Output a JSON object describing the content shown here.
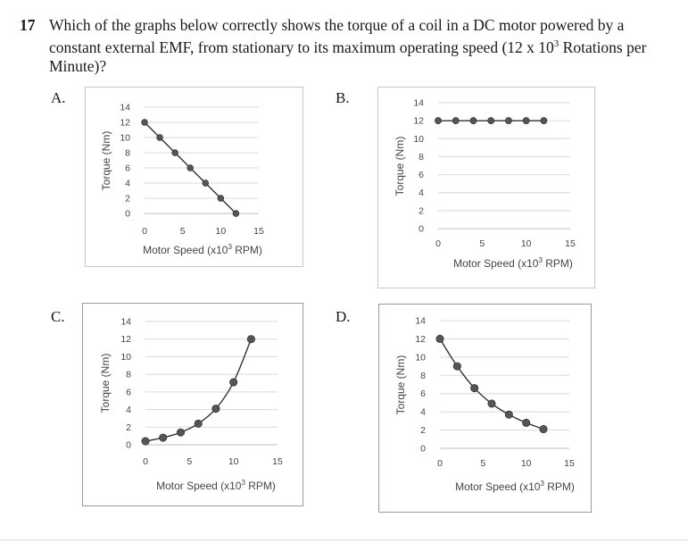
{
  "question": {
    "number": "17",
    "text_pre": "Which of the graphs below correctly shows the torque of a coil in a DC motor powered by a constant external EMF, from stationary to its maximum operating speed (12 x 10",
    "sup": "3",
    "text_post": " Rotations per Minute)?"
  },
  "options": [
    {
      "label": "A."
    },
    {
      "label": "B."
    },
    {
      "label": "C."
    },
    {
      "label": "D."
    }
  ],
  "colors": {
    "marker": "#555555",
    "line": "#333333",
    "grid": "#d9d9d9",
    "axis": "#bfbfbf"
  },
  "chart_data": [
    {
      "id": "A",
      "type": "line",
      "xlabel_base": "Motor Speed (x10",
      "xlabel_sup": "3",
      "xlabel_end": " RPM)",
      "ylabel": "Torque (Nm)",
      "xlim": [
        0,
        15
      ],
      "ylim": [
        0,
        14
      ],
      "xticks": [
        "0",
        "5",
        "10",
        "15"
      ],
      "xtick_values": [
        0,
        5,
        10,
        15
      ],
      "yticks": [
        "0",
        "2",
        "4",
        "6",
        "8",
        "10",
        "12",
        "14"
      ],
      "ytick_values": [
        0,
        2,
        4,
        6,
        8,
        10,
        12,
        14
      ],
      "grid": true,
      "x": [
        0,
        2,
        4,
        6,
        8,
        10,
        12
      ],
      "y": [
        12,
        10,
        8,
        6,
        4,
        2,
        0
      ]
    },
    {
      "id": "B",
      "type": "line",
      "xlabel_base": "Motor Speed (x10",
      "xlabel_sup": "3",
      "xlabel_end": " RPM)",
      "ylabel": "Torque (Nm)",
      "xlim": [
        0,
        15
      ],
      "ylim": [
        0,
        14
      ],
      "xticks": [
        "0",
        "5",
        "10",
        "15"
      ],
      "xtick_values": [
        0,
        5,
        10,
        15
      ],
      "yticks": [
        "0",
        "2",
        "4",
        "6",
        "8",
        "10",
        "12",
        "14"
      ],
      "ytick_values": [
        0,
        2,
        4,
        6,
        8,
        10,
        12,
        14
      ],
      "grid": true,
      "x": [
        0,
        2,
        4,
        6,
        8,
        10,
        12
      ],
      "y": [
        12,
        12,
        12,
        12,
        12,
        12,
        12
      ]
    },
    {
      "id": "C",
      "type": "line",
      "xlabel_base": "Motor Speed (x10",
      "xlabel_sup": "3",
      "xlabel_end": " RPM)",
      "ylabel": "Torque (Nm)",
      "xlim": [
        0,
        15
      ],
      "ylim": [
        0,
        14
      ],
      "xticks": [
        "0",
        "5",
        "10",
        "15"
      ],
      "xtick_values": [
        0,
        5,
        10,
        15
      ],
      "yticks": [
        "0",
        "2",
        "4",
        "6",
        "8",
        "10",
        "12",
        "14"
      ],
      "ytick_values": [
        0,
        2,
        4,
        6,
        8,
        10,
        12,
        14
      ],
      "grid": true,
      "x": [
        0,
        2,
        4,
        6,
        8,
        10,
        12
      ],
      "y": [
        0.4,
        0.8,
        1.4,
        2.4,
        4.1,
        7.1,
        12
      ]
    },
    {
      "id": "D",
      "type": "line",
      "xlabel_base": "Motor Speed (x10",
      "xlabel_sup": "3",
      "xlabel_end": " RPM)",
      "ylabel": "Torque (Nm)",
      "xlim": [
        0,
        15
      ],
      "ylim": [
        0,
        14
      ],
      "xticks": [
        "0",
        "5",
        "10",
        "15"
      ],
      "xtick_values": [
        0,
        5,
        10,
        15
      ],
      "yticks": [
        "0",
        "2",
        "4",
        "6",
        "8",
        "10",
        "12",
        "14"
      ],
      "ytick_values": [
        0,
        2,
        4,
        6,
        8,
        10,
        12,
        14
      ],
      "grid": true,
      "x": [
        0,
        2,
        4,
        6,
        8,
        10,
        12
      ],
      "y": [
        12,
        9,
        6.6,
        4.9,
        3.7,
        2.8,
        2.1
      ]
    }
  ]
}
